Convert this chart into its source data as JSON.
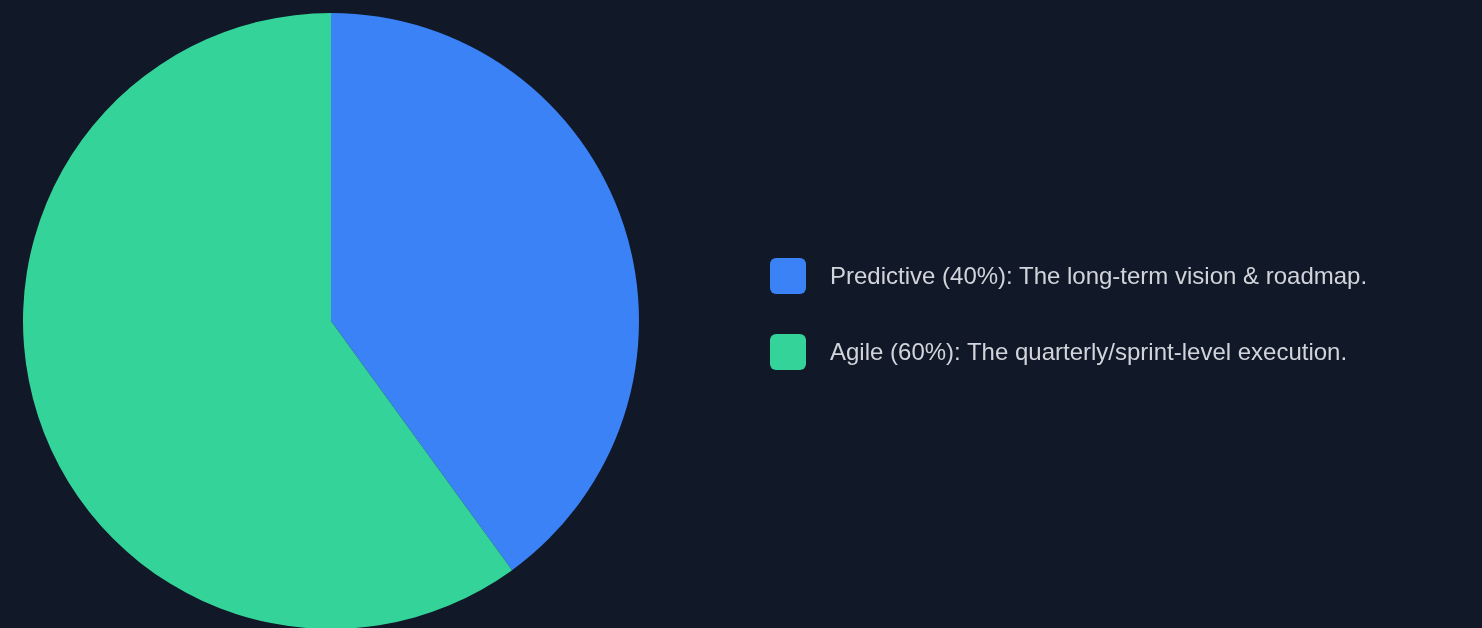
{
  "chart_data": {
    "type": "pie",
    "categories": [
      "Predictive (40%): The long-term vision & roadmap.",
      "Agile (60%): The quarterly/sprint-level execution."
    ],
    "values": [
      40,
      60
    ],
    "colors": [
      "#3b82f6",
      "#34d399"
    ],
    "legend": "right"
  }
}
